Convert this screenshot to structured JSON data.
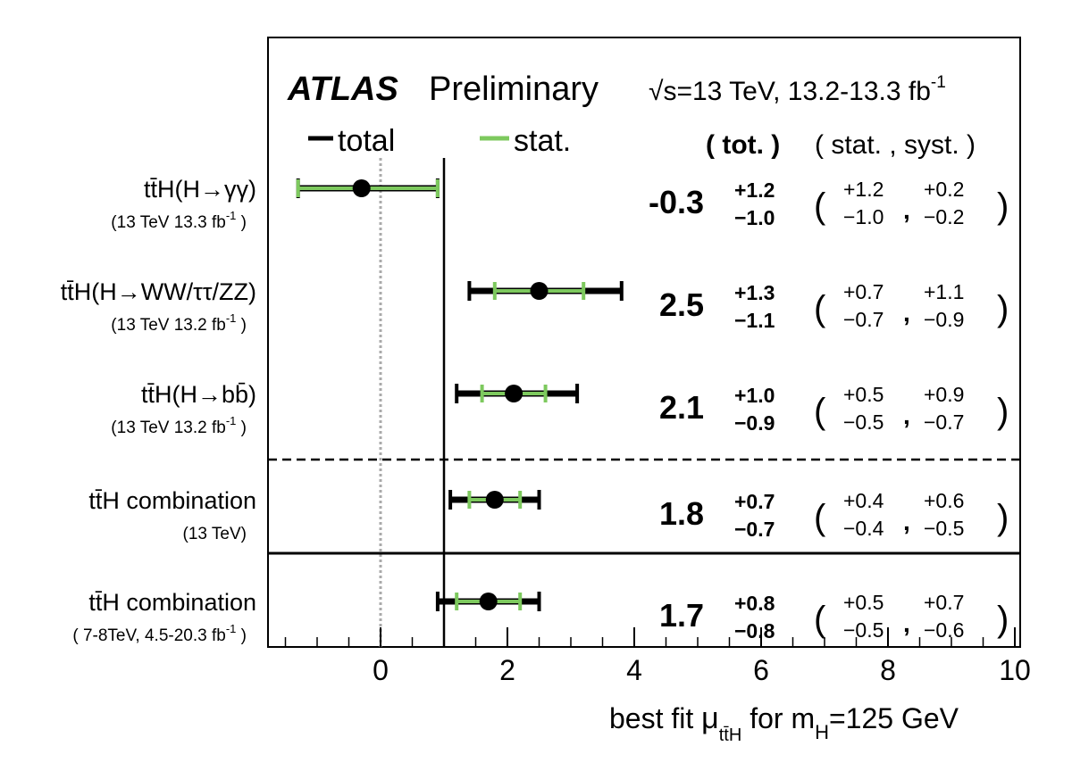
{
  "chart_data": {
    "type": "scatter",
    "header": {
      "experiment": "ATLAS",
      "status": "Preliminary",
      "sqrt_symbol": "√",
      "energy_prefix": "s=13 TeV, 13.2-13.3 fb",
      "energy_sup": "-1"
    },
    "legend": {
      "total_label": "total",
      "stat_label": "stat.",
      "tot_header": "( tot. )",
      "stat_syst_header": "( stat. , syst. )",
      "total_color": "#000000",
      "stat_color": "#7dc95e"
    },
    "xaxis": {
      "xlim": [
        -1.7,
        10
      ],
      "ticks": [
        0,
        2,
        4,
        6,
        8,
        10
      ],
      "tick_labels": [
        "0",
        "2",
        "4",
        "6",
        "8",
        "10"
      ],
      "reference_line_x": 1,
      "sm_zero_line_x": 0,
      "label_prefix": "best fit ",
      "label_mu": "μ",
      "label_mu_sub": "tt̄H",
      "label_mid": " for m",
      "label_m_sub": "H",
      "label_suffix": "=125 GeV"
    },
    "separators": [
      {
        "after_row": 2,
        "style": "dashed"
      },
      {
        "after_row": 3,
        "style": "solid"
      }
    ],
    "rows": [
      {
        "label": "tt̄H(H→γγ)",
        "sublabel_main": "(13 TeV 13.3 fb",
        "sublabel_sup": "-1",
        "sublabel_end": ")",
        "value": -0.3,
        "total_lo": -1.3,
        "total_hi": 0.9,
        "stat_lo": -1.3,
        "stat_hi": 0.9,
        "value_text": "-0.3",
        "tot_up": "+1.2",
        "tot_down": "−1.0",
        "stat_up": "+1.2",
        "stat_down": "−1.0",
        "syst_up": "+0.2",
        "syst_down": "−0.2"
      },
      {
        "label": "tt̄H(H→WW/ττ/ZZ)",
        "sublabel_main": "(13 TeV 13.2 fb",
        "sublabel_sup": "-1",
        "sublabel_end": ")",
        "value": 2.5,
        "total_lo": 1.4,
        "total_hi": 3.8,
        "stat_lo": 1.8,
        "stat_hi": 3.2,
        "value_text": "2.5",
        "tot_up": "+1.3",
        "tot_down": "−1.1",
        "stat_up": "+0.7",
        "stat_down": "−0.7",
        "syst_up": "+1.1",
        "syst_down": "−0.9"
      },
      {
        "label": "tt̄H(H→bb̄)",
        "sublabel_main": "(13 TeV 13.2 fb",
        "sublabel_sup": "-1",
        "sublabel_end": ")",
        "value": 2.1,
        "total_lo": 1.2,
        "total_hi": 3.1,
        "stat_lo": 1.6,
        "stat_hi": 2.6,
        "value_text": "2.1",
        "tot_up": "+1.0",
        "tot_down": "−0.9",
        "stat_up": "+0.5",
        "stat_down": "−0.5",
        "syst_up": "+0.9",
        "syst_down": "−0.7"
      },
      {
        "label": "tt̄H combination",
        "sublabel_main": "(13 TeV)",
        "sublabel_sup": "",
        "sublabel_end": "",
        "value": 1.8,
        "total_lo": 1.1,
        "total_hi": 2.5,
        "stat_lo": 1.4,
        "stat_hi": 2.2,
        "value_text": "1.8",
        "tot_up": "+0.7",
        "tot_down": "−0.7",
        "stat_up": "+0.4",
        "stat_down": "−0.4",
        "syst_up": "+0.6",
        "syst_down": "−0.5"
      },
      {
        "label": "tt̄H combination",
        "sublabel_main": "( 7-8TeV, 4.5-20.3 fb",
        "sublabel_sup": "-1",
        "sublabel_end": ")",
        "value": 1.7,
        "total_lo": 0.9,
        "total_hi": 2.5,
        "stat_lo": 1.2,
        "stat_hi": 2.2,
        "value_text": "1.7",
        "tot_up": "+0.8",
        "tot_down": "−0.8",
        "stat_up": "+0.5",
        "stat_down": "−0.5",
        "syst_up": "+0.7",
        "syst_down": "−0.6"
      }
    ]
  }
}
